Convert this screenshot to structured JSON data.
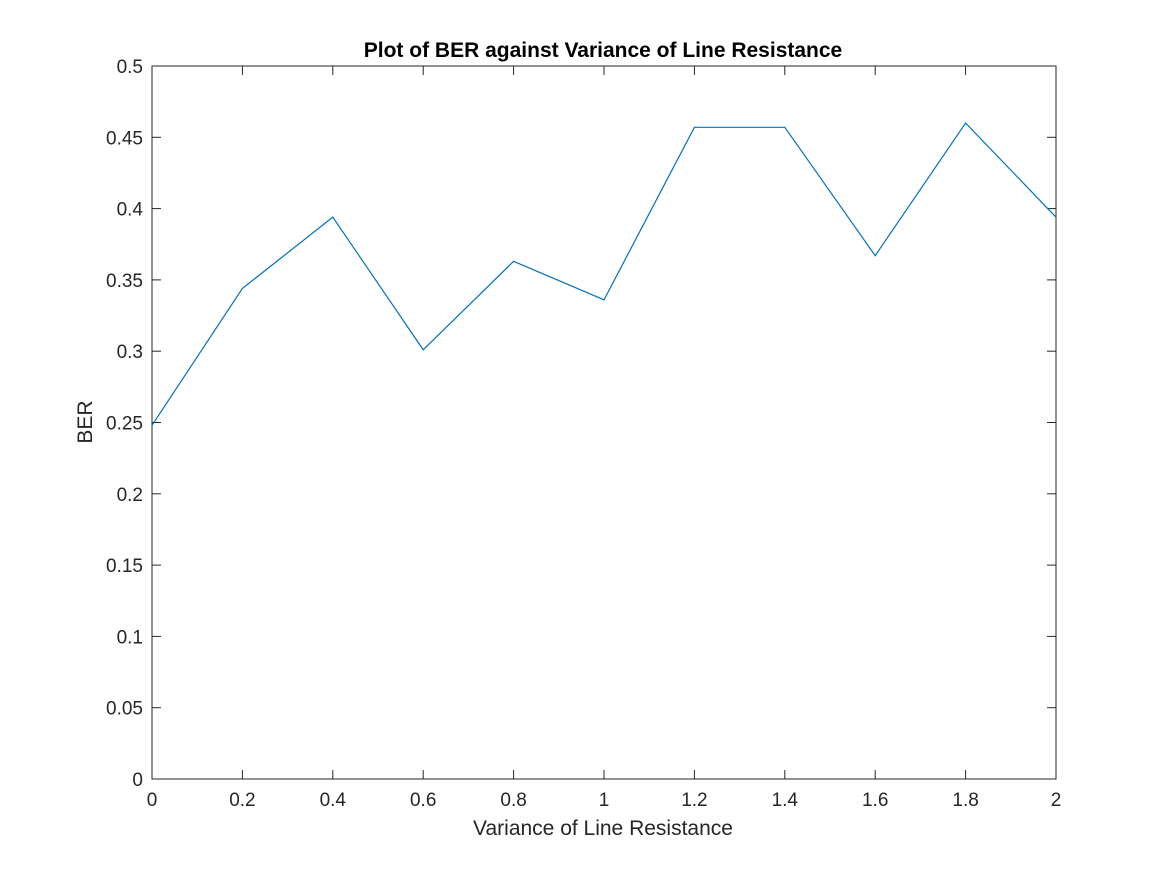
{
  "chart_data": {
    "type": "line",
    "title": "Plot of BER against Variance of Line Resistance",
    "xlabel": "Variance of Line Resistance",
    "ylabel": "BER",
    "xlim": [
      0,
      2
    ],
    "ylim": [
      0,
      0.5
    ],
    "xticks": [
      0,
      0.2,
      0.4,
      0.6,
      0.8,
      1,
      1.2,
      1.4,
      1.6,
      1.8,
      2
    ],
    "xtick_labels": [
      "0",
      "0.2",
      "0.4",
      "0.6",
      "0.8",
      "1",
      "1.2",
      "1.4",
      "1.6",
      "1.8",
      "2"
    ],
    "yticks": [
      0,
      0.05,
      0.1,
      0.15,
      0.2,
      0.25,
      0.3,
      0.35,
      0.4,
      0.45,
      0.5
    ],
    "ytick_labels": [
      "0",
      "0.05",
      "0.1",
      "0.15",
      "0.2",
      "0.25",
      "0.3",
      "0.35",
      "0.4",
      "0.45",
      "0.5"
    ],
    "grid": false,
    "legend": "none",
    "line_color": "#0072BD",
    "series": [
      {
        "x": [
          0,
          0.2,
          0.4,
          0.6,
          0.8,
          1.0,
          1.2,
          1.4,
          1.6,
          1.8,
          2.0
        ],
        "y": [
          0.248,
          0.344,
          0.394,
          0.301,
          0.363,
          0.336,
          0.457,
          0.457,
          0.367,
          0.46,
          0.394
        ]
      }
    ]
  }
}
